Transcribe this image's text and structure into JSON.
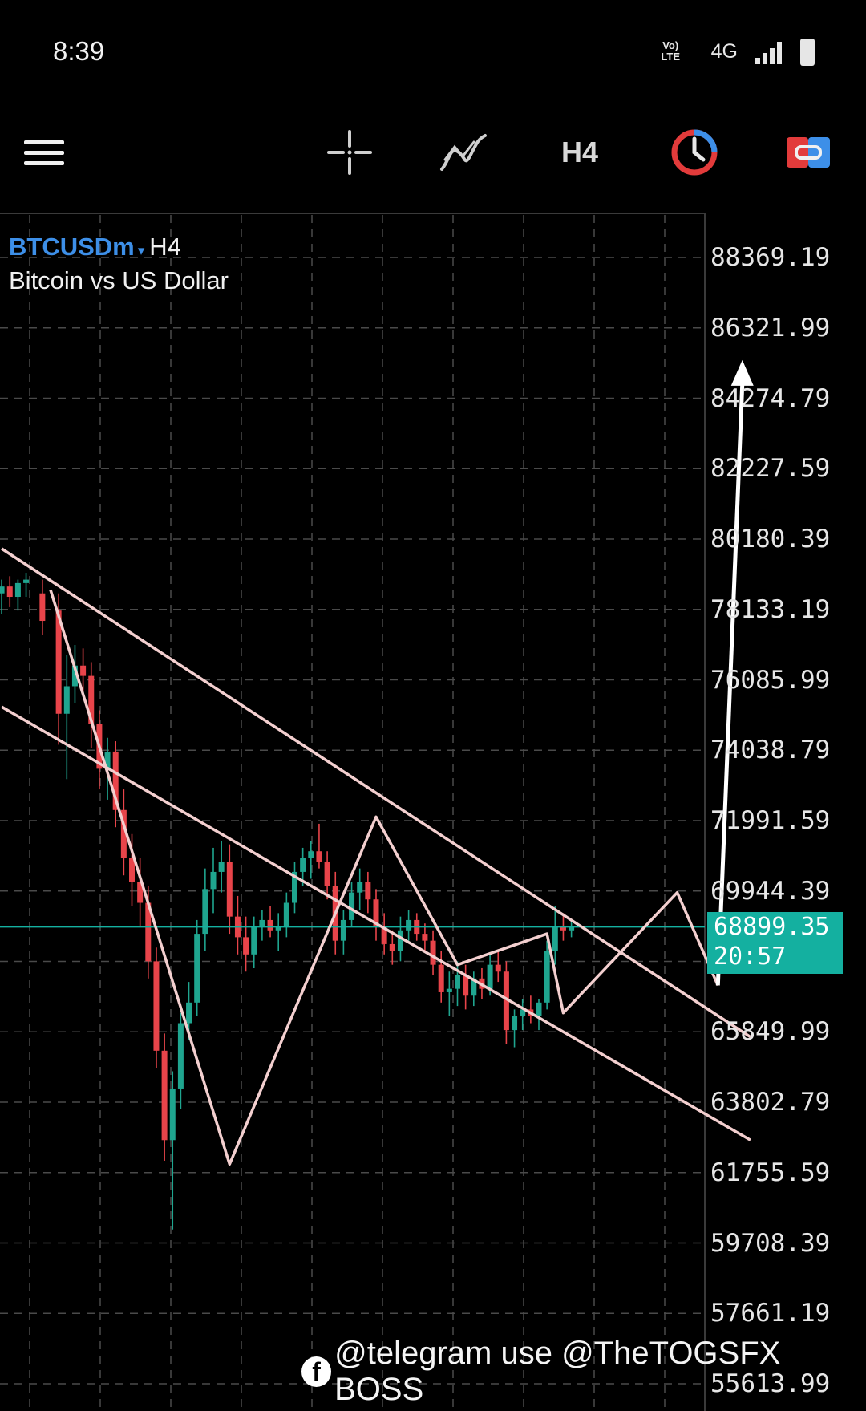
{
  "status_bar": {
    "time": "8:39",
    "network_type": "4G",
    "volte_label_top": "Vo)",
    "volte_label_bottom": "LTE"
  },
  "toolbar": {
    "menu_icon": "hamburger-menu-icon",
    "crosshair_icon": "crosshair-icon",
    "indicators_icon": "indicators-icon",
    "timeframe_label": "H4",
    "trade_clock_icon": "clock-icon",
    "objects_icon": "objects-icon"
  },
  "chart": {
    "symbol": "BTCUSDm",
    "symbol_caret": "▾",
    "timeframe": "H4",
    "description": "Bitcoin vs US Dollar",
    "current_price": "68899.35",
    "countdown": "20:57",
    "colors": {
      "bull": "#1fa58f",
      "bear": "#e8444a",
      "grid": "#4a4a4a",
      "price_line": "#14b0a0",
      "pattern": "#f3cfcf",
      "arrow": "#ffffff"
    }
  },
  "chart_data": {
    "type": "candlestick",
    "price_axis_labels": [
      "88369.19",
      "86321.99",
      "84274.79",
      "82227.59",
      "80180.39",
      "78133.19",
      "76085.99",
      "74038.79",
      "71991.59",
      "69944.39",
      "67897.19",
      "65849.99",
      "63802.79",
      "61755.59",
      "59708.39",
      "57661.19",
      "55613.99"
    ],
    "ylim": [
      55613.99,
      89700
    ],
    "current_price": 68899.35,
    "zigzag_pattern": [
      [
        0,
        78700
      ],
      [
        22,
        62000
      ],
      [
        40,
        72100
      ],
      [
        50,
        67800
      ],
      [
        61,
        68700
      ],
      [
        63,
        66400
      ],
      [
        77,
        69900
      ],
      [
        82,
        67200
      ]
    ],
    "projection_arrow": [
      [
        82,
        67200
      ],
      [
        85,
        85200
      ]
    ],
    "channel_lines": [
      {
        "from": [
          -6,
          79900
        ],
        "to": [
          86,
          65700
        ]
      },
      {
        "from": [
          -6,
          75300
        ],
        "to": [
          86,
          62700
        ]
      }
    ],
    "candles": [
      [
        -6,
        78600,
        79000,
        78000,
        78800
      ],
      [
        -5,
        78800,
        79100,
        78200,
        78500
      ],
      [
        -4,
        78500,
        79000,
        78100,
        78900
      ],
      [
        -3,
        78900,
        79200,
        78500,
        79000
      ],
      [
        -1,
        78600,
        79000,
        77400,
        77800
      ],
      [
        1,
        78100,
        78600,
        74200,
        75100
      ],
      [
        2,
        75100,
        76800,
        73200,
        75900
      ],
      [
        3,
        75900,
        77100,
        75400,
        76500
      ],
      [
        4,
        76500,
        77000,
        75700,
        76200
      ],
      [
        5,
        76200,
        76600,
        74100,
        74800
      ],
      [
        6,
        74800,
        75200,
        72900,
        73500
      ],
      [
        7,
        73500,
        74400,
        72600,
        74000
      ],
      [
        8,
        74000,
        74300,
        71800,
        72300
      ],
      [
        9,
        72300,
        72900,
        70400,
        70900
      ],
      [
        10,
        70900,
        71600,
        69500,
        70200
      ],
      [
        11,
        70200,
        70900,
        68900,
        69600
      ],
      [
        12,
        69600,
        70100,
        67400,
        67900
      ],
      [
        13,
        67900,
        68300,
        64800,
        65300
      ],
      [
        14,
        65300,
        65800,
        62100,
        62700
      ],
      [
        15,
        62700,
        64700,
        60100,
        64200
      ],
      [
        16,
        64200,
        66400,
        63600,
        66100
      ],
      [
        17,
        66100,
        67300,
        65600,
        66700
      ],
      [
        18,
        66700,
        69100,
        66300,
        68700
      ],
      [
        19,
        68700,
        70600,
        68200,
        70000
      ],
      [
        20,
        70000,
        71200,
        69300,
        70500
      ],
      [
        21,
        70500,
        71400,
        69900,
        70800
      ],
      [
        22,
        70800,
        71300,
        68700,
        69200
      ],
      [
        23,
        69200,
        69800,
        68100,
        68600
      ],
      [
        24,
        68600,
        69200,
        67600,
        68100
      ],
      [
        25,
        68100,
        69200,
        67700,
        68900
      ],
      [
        26,
        68900,
        69400,
        68500,
        69100
      ],
      [
        27,
        69100,
        69500,
        68600,
        68800
      ],
      [
        28,
        68800,
        69300,
        68200,
        68900
      ],
      [
        29,
        68900,
        69900,
        68600,
        69600
      ],
      [
        30,
        69600,
        70800,
        69300,
        70500
      ],
      [
        31,
        70500,
        71200,
        70100,
        70900
      ],
      [
        32,
        70900,
        71400,
        70300,
        71100
      ],
      [
        33,
        71100,
        71900,
        70600,
        70800
      ],
      [
        34,
        70800,
        71100,
        69700,
        70100
      ],
      [
        35,
        70100,
        70500,
        68100,
        68500
      ],
      [
        36,
        68500,
        69400,
        68100,
        69100
      ],
      [
        37,
        69100,
        70200,
        68900,
        69900
      ],
      [
        38,
        69900,
        70600,
        69400,
        70200
      ],
      [
        39,
        70200,
        70500,
        69300,
        69700
      ],
      [
        40,
        69700,
        70000,
        68500,
        68900
      ],
      [
        41,
        68900,
        69300,
        68100,
        68400
      ],
      [
        42,
        68400,
        68800,
        67800,
        68200
      ],
      [
        43,
        68200,
        69200,
        67900,
        68800
      ],
      [
        44,
        68800,
        69400,
        68500,
        69100
      ],
      [
        45,
        69100,
        69300,
        68500,
        68700
      ],
      [
        46,
        68700,
        69000,
        68200,
        68500
      ],
      [
        47,
        68500,
        68800,
        67500,
        67800
      ],
      [
        48,
        67800,
        68200,
        66700,
        67000
      ],
      [
        49,
        67000,
        67600,
        66300,
        67100
      ],
      [
        50,
        67100,
        67900,
        66600,
        67500
      ],
      [
        51,
        67500,
        67800,
        66500,
        66900
      ],
      [
        52,
        66900,
        67600,
        66600,
        67400
      ],
      [
        53,
        67400,
        67700,
        66800,
        67100
      ],
      [
        54,
        67100,
        68100,
        66900,
        67800
      ],
      [
        55,
        67800,
        68200,
        67300,
        67600
      ],
      [
        56,
        67600,
        67900,
        65500,
        65900
      ],
      [
        57,
        65900,
        66500,
        65400,
        66300
      ],
      [
        58,
        66300,
        66800,
        65900,
        66500
      ],
      [
        59,
        66500,
        66900,
        66100,
        66300
      ],
      [
        60,
        66300,
        66800,
        65900,
        66700
      ],
      [
        61,
        66700,
        68500,
        66500,
        68200
      ],
      [
        62,
        68200,
        69500,
        67800,
        68900
      ],
      [
        63,
        68900,
        69300,
        68500,
        68800
      ],
      [
        64,
        68800,
        69100,
        68600,
        68900
      ]
    ]
  },
  "watermark": {
    "icon": "facebook-icon",
    "text": "@telegram use @TheTOGSFX BOSS"
  }
}
